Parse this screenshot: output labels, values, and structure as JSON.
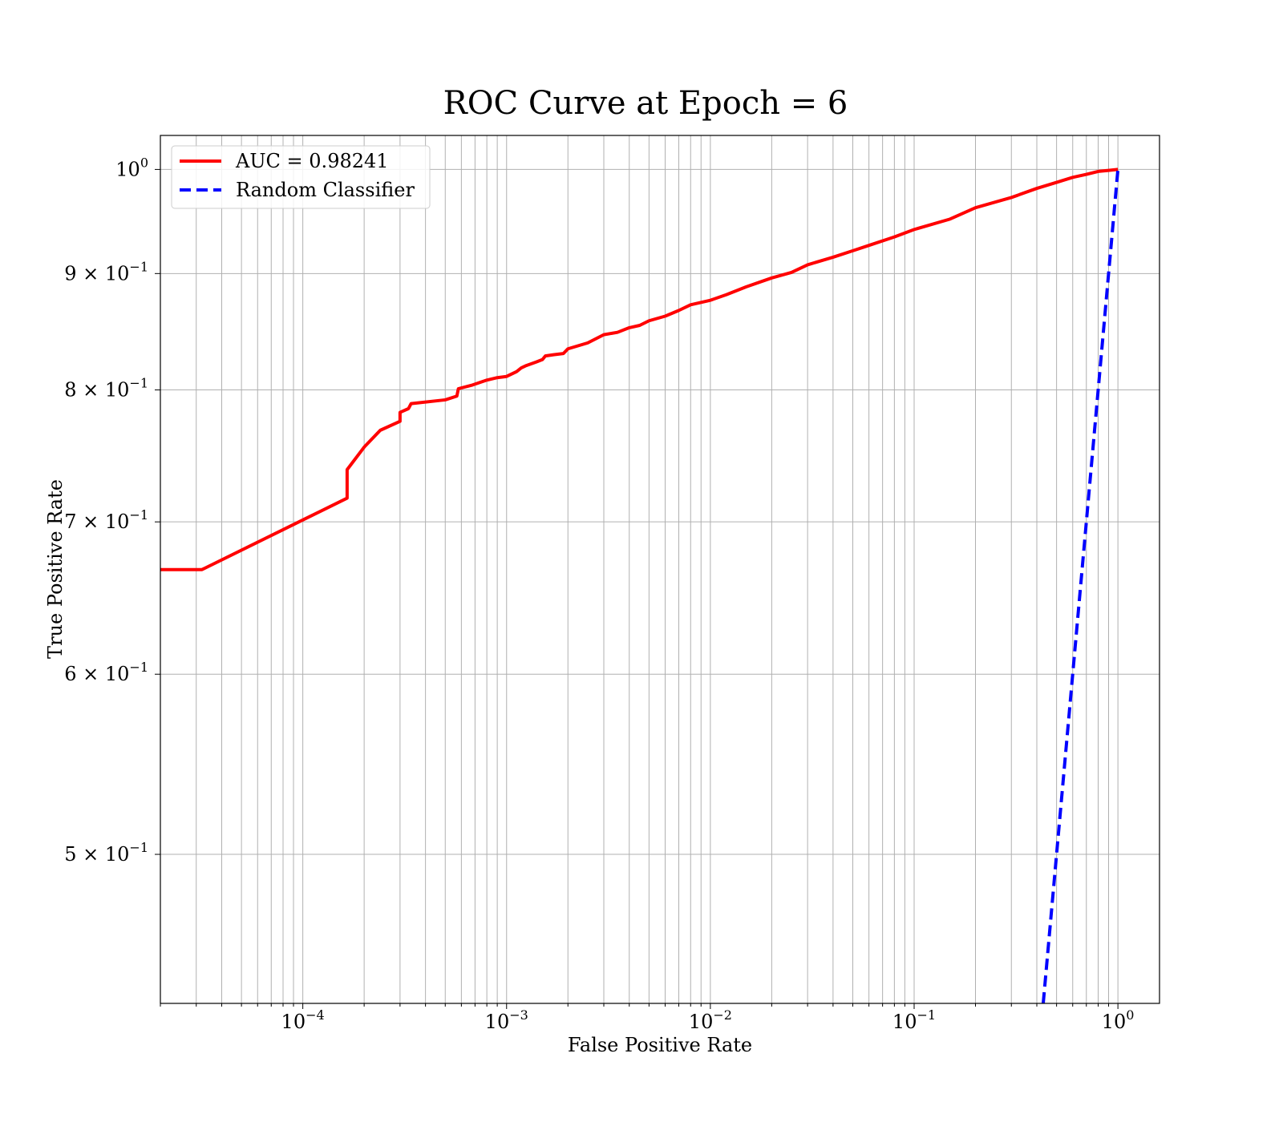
{
  "chart_data": {
    "type": "line",
    "title": "ROC Curve at Epoch = 6",
    "xlabel": "False Positive Rate",
    "ylabel": "True Positive Rate",
    "xscale": "log",
    "yscale": "log",
    "xlim": [
      2e-05,
      1.6
    ],
    "ylim": [
      0.43,
      1.035
    ],
    "grid": true,
    "grid_minor": true,
    "legend_position": "top-left",
    "x_ticks": [
      {
        "value": 0.0001,
        "base": "10",
        "exp": "−4"
      },
      {
        "value": 0.001,
        "base": "10",
        "exp": "−3"
      },
      {
        "value": 0.01,
        "base": "10",
        "exp": "−2"
      },
      {
        "value": 0.1,
        "base": "10",
        "exp": "−1"
      },
      {
        "value": 1,
        "base": "10",
        "exp": "0"
      }
    ],
    "y_ticks": [
      {
        "value": 1.0,
        "base": "10",
        "exp": "0"
      },
      {
        "value": 0.9,
        "base": "9 × 10",
        "exp": "−1"
      },
      {
        "value": 0.8,
        "base": "8 × 10",
        "exp": "−1"
      },
      {
        "value": 0.7,
        "base": "7 × 10",
        "exp": "−1"
      },
      {
        "value": 0.6,
        "base": "6 × 10",
        "exp": "−1"
      },
      {
        "value": 0.5,
        "base": "5 × 10",
        "exp": "−1"
      }
    ],
    "series": [
      {
        "name": "AUC = 0.98241",
        "color": "#ff0000",
        "style": "solid",
        "x": [
          2e-05,
          3.2e-05,
          0.000165,
          0.000165,
          0.0002,
          0.00024,
          0.0003,
          0.0003,
          0.00033,
          0.00034,
          0.0005,
          0.00057,
          0.00058,
          0.00068,
          0.0008,
          0.0009,
          0.001,
          0.00112,
          0.00118,
          0.00125,
          0.0014,
          0.0015,
          0.00155,
          0.0017,
          0.0019,
          0.002,
          0.0025,
          0.003,
          0.0035,
          0.004,
          0.0045,
          0.005,
          0.006,
          0.007,
          0.008,
          0.01,
          0.012,
          0.015,
          0.02,
          0.025,
          0.03,
          0.04,
          0.05,
          0.06,
          0.08,
          0.1,
          0.15,
          0.2,
          0.3,
          0.4,
          0.5,
          0.6,
          0.7,
          0.8,
          0.9,
          1.0
        ],
        "y": [
          0.667,
          0.667,
          0.717,
          0.738,
          0.755,
          0.768,
          0.775,
          0.782,
          0.785,
          0.789,
          0.792,
          0.795,
          0.801,
          0.804,
          0.808,
          0.81,
          0.811,
          0.815,
          0.818,
          0.82,
          0.823,
          0.825,
          0.828,
          0.829,
          0.83,
          0.834,
          0.839,
          0.846,
          0.848,
          0.852,
          0.854,
          0.858,
          0.862,
          0.867,
          0.872,
          0.876,
          0.881,
          0.888,
          0.896,
          0.901,
          0.908,
          0.915,
          0.921,
          0.926,
          0.934,
          0.941,
          0.951,
          0.962,
          0.972,
          0.981,
          0.987,
          0.992,
          0.995,
          0.998,
          0.999,
          1.0
        ]
      },
      {
        "name": "Random Classifier",
        "color": "#0000ff",
        "style": "dashed",
        "x": [
          0.43,
          1.0
        ],
        "y": [
          0.43,
          1.0
        ]
      }
    ]
  }
}
